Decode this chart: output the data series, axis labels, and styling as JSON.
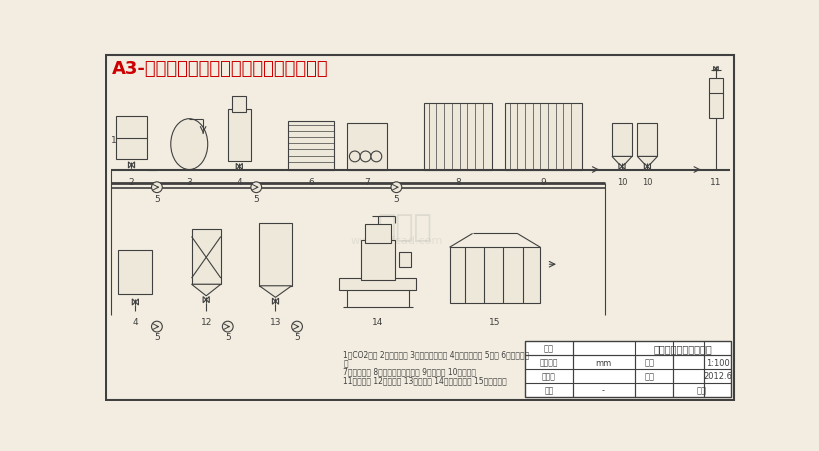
{
  "title": "A3-超临界二氧化碳萃取米糠油工艺流程图",
  "title_color": "#cc0000",
  "bg_color": "#f2ede0",
  "line_color": "#404040",
  "fill_color": "#ede8da",
  "legend_line1": "1、CO2钢瓶 2、制冷系统 3、温度控制系统 4、搪夹带剂罐 5、泵 6、板式混合",
  "legend_line2": "器",
  "legend_line3": "7、热交换器 8、超高温瞬时杀菌机 9、萃取缸 10、分离器",
  "legend_line4": "11、精馏罐 12、电控柜 13、无菌罐 14、无菌灌装机 15、外包装线",
  "table_name": "精炼米糠油工艺流程图",
  "table_unit": "mm",
  "table_ratio": "1:100",
  "table_time": "2012.6"
}
